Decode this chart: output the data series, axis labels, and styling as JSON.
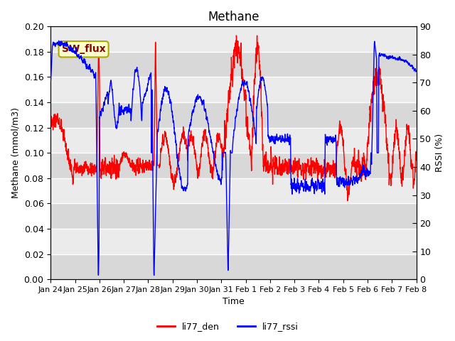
{
  "title": "Methane",
  "xlabel": "Time",
  "ylabel_left": "Methane (mmol/m3)",
  "ylabel_right": "RSSI (%)",
  "ylim_left": [
    0.0,
    0.2
  ],
  "ylim_right": [
    0,
    90
  ],
  "yticks_left": [
    0.0,
    0.02,
    0.04,
    0.06,
    0.08,
    0.1,
    0.12,
    0.14,
    0.16,
    0.18,
    0.2
  ],
  "yticks_right": [
    0,
    10,
    20,
    30,
    40,
    50,
    60,
    70,
    80,
    90
  ],
  "xtick_labels": [
    "Jan 24",
    "Jan 25",
    "Jan 26",
    "Jan 27",
    "Jan 28",
    "Jan 29",
    "Jan 30",
    "Jan 31",
    "Feb 1",
    "Feb 2",
    "Feb 3",
    "Feb 4",
    "Feb 5",
    "Feb 6",
    "Feb 7",
    "Feb 8"
  ],
  "legend_labels": [
    "li77_den",
    "li77_rssi"
  ],
  "line_colors": [
    "red",
    "blue"
  ],
  "annotation_text": "SW_flux",
  "annotation_bg": "#ffffcc",
  "annotation_border": "#aaaa00",
  "annotation_text_color": "#880000",
  "background_color": "#e8e8e8",
  "band_color_light": "#ebebeb",
  "band_color_dark": "#d8d8d8",
  "grid_color": "#ffffff",
  "title_fontsize": 12,
  "axis_fontsize": 9,
  "tick_fontsize": 9
}
